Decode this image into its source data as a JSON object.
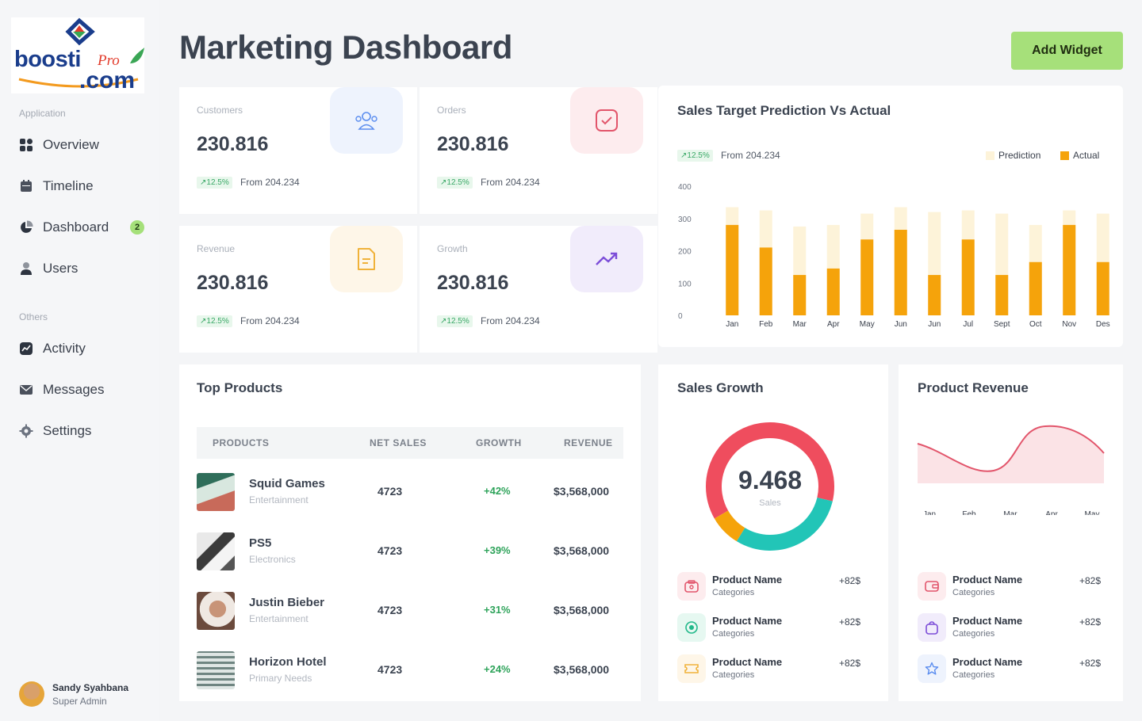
{
  "brand": {
    "main": "boosti",
    "pro": "Pro",
    "com": ".com"
  },
  "sidebar": {
    "application_label": "Application",
    "others_label": "Others",
    "items": [
      {
        "label": "Overview",
        "icon": "grid-icon"
      },
      {
        "label": "Timeline",
        "icon": "calendar-icon"
      },
      {
        "label": "Dashboard",
        "icon": "pie-chart-icon",
        "badge": "2"
      },
      {
        "label": "Users",
        "icon": "user-icon"
      }
    ],
    "other_items": [
      {
        "label": "Activity",
        "icon": "activity-icon"
      },
      {
        "label": "Messages",
        "icon": "mail-icon"
      },
      {
        "label": "Settings",
        "icon": "gear-icon"
      }
    ],
    "profile": {
      "name": "Sandy Syahbana",
      "role": "Super Admin"
    }
  },
  "header": {
    "title": "Marketing Dashboard",
    "add_widget": "Add Widget"
  },
  "stats": [
    {
      "label": "Customers",
      "value": "230.816",
      "change": "↗12.5%",
      "from": "From 204.234",
      "icon": "users-icon",
      "color": "#5b8def"
    },
    {
      "label": "Orders",
      "value": "230.816",
      "change": "↗12.5%",
      "from": "From 204.234",
      "icon": "check-box-icon",
      "color": "#e2556b"
    },
    {
      "label": "Revenue",
      "value": "230.816",
      "change": "↗12.5%",
      "from": "From 204.234",
      "icon": "document-icon",
      "color": "#f0b23a"
    },
    {
      "label": "Growth",
      "value": "230.816",
      "change": "↗12.5%",
      "from": "From 204.234",
      "icon": "trend-up-icon",
      "color": "#7c4dd8"
    }
  ],
  "sales_target": {
    "title": "Sales Target Prediction Vs Actual",
    "change": "↗12.5%",
    "from": "From 204.234",
    "legend": {
      "prediction": "Prediction",
      "actual": "Actual"
    }
  },
  "chart_data": [
    {
      "type": "bar",
      "title": "Sales Target Prediction Vs Actual",
      "categories": [
        "Jan",
        "Feb",
        "Mar",
        "Apr",
        "May",
        "Jun",
        "Jun",
        "Jul",
        "Sept",
        "Oct",
        "Nov",
        "Des"
      ],
      "yticks": [
        0,
        100,
        200,
        300,
        400
      ],
      "ylim": [
        0,
        400
      ],
      "series": [
        {
          "name": "Prediction",
          "color": "#fdf3d9",
          "values": [
            335,
            325,
            275,
            280,
            315,
            335,
            320,
            325,
            315,
            280,
            325,
            315
          ]
        },
        {
          "name": "Actual",
          "color": "#f5a30b",
          "values": [
            280,
            210,
            125,
            145,
            235,
            265,
            125,
            235,
            125,
            165,
            280,
            165
          ]
        }
      ],
      "legend": "top-right",
      "grid": false
    },
    {
      "type": "pie",
      "title": "Sales Growth",
      "center_value": "9.468",
      "center_label": "Sales",
      "slices": [
        {
          "value": 0.62,
          "color": "#ef4d5e"
        },
        {
          "value": 0.3,
          "color": "#22c5b7"
        },
        {
          "value": 0.08,
          "color": "#f5a30b"
        }
      ]
    },
    {
      "type": "area",
      "title": "Product Revenue",
      "categories": [
        "Jan",
        "Feb",
        "Mar",
        "Apr",
        "May"
      ],
      "color": "#e2556b"
    }
  ],
  "top_products": {
    "title": "Top Products",
    "columns": [
      "PRODUCTS",
      "NET SALES",
      "GROWTH",
      "REVENUE"
    ],
    "rows": [
      {
        "name": "Squid Games",
        "category": "Entertainment",
        "net": "4723",
        "growth": "+42%",
        "revenue": "$3,568,000"
      },
      {
        "name": "PS5",
        "category": "Electronics",
        "net": "4723",
        "growth": "+39%",
        "revenue": "$3,568,000"
      },
      {
        "name": "Justin Bieber",
        "category": "Entertainment",
        "net": "4723",
        "growth": "+31%",
        "revenue": "$3,568,000"
      },
      {
        "name": "Horizon Hotel",
        "category": "Primary Needs",
        "net": "4723",
        "growth": "+24%",
        "revenue": "$3,568,000"
      }
    ]
  },
  "sales_growth": {
    "title": "Sales Growth",
    "value": "9.468",
    "label": "Sales",
    "items": [
      {
        "name": "Product Name",
        "category": "Categories",
        "value": "+82$",
        "icon": "wallet-icon",
        "color": "#e2556b"
      },
      {
        "name": "Product Name",
        "category": "Categories",
        "value": "+82$",
        "icon": "target-icon",
        "color": "#22b88a"
      },
      {
        "name": "Product Name",
        "category": "Categories",
        "value": "+82$",
        "icon": "ticket-icon",
        "color": "#f0b23a"
      }
    ]
  },
  "product_revenue": {
    "title": "Product Revenue",
    "months": [
      "Jan",
      "Feb",
      "Mar",
      "Apr",
      "May"
    ],
    "items": [
      {
        "name": "Product Name",
        "category": "Categories",
        "value": "+82$",
        "icon": "wallet-icon",
        "color": "#e2556b"
      },
      {
        "name": "Product Name",
        "category": "Categories",
        "value": "+82$",
        "icon": "bag-icon",
        "color": "#7c4dd8"
      },
      {
        "name": "Product Name",
        "category": "Categories",
        "value": "+82$",
        "icon": "star-icon",
        "color": "#5b8def"
      }
    ]
  }
}
